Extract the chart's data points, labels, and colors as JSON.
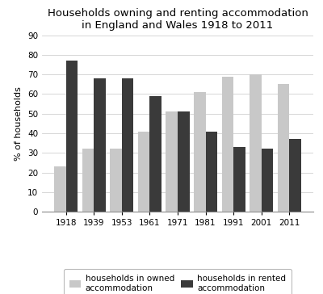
{
  "title": "Households owning and renting accommodation\nin England and Wales 1918 to 2011",
  "years": [
    "1918",
    "1939",
    "1953",
    "1961",
    "1971",
    "1981",
    "1991",
    "2001",
    "2011"
  ],
  "owned": [
    23,
    32,
    32,
    41,
    51,
    61,
    69,
    70,
    65
  ],
  "rented": [
    77,
    68,
    68,
    59,
    51,
    41,
    33,
    32,
    37
  ],
  "owned_color": "#c8c8c8",
  "rented_color": "#3a3a3a",
  "ylabel": "% of households",
  "ylim": [
    0,
    90
  ],
  "yticks": [
    0,
    10,
    20,
    30,
    40,
    50,
    60,
    70,
    80,
    90
  ],
  "legend_owned": "households in owned\naccommodation",
  "legend_rented": "households in rented\naccommodation",
  "bar_width": 0.42,
  "title_fontsize": 9.5,
  "axis_fontsize": 8,
  "tick_fontsize": 7.5,
  "legend_fontsize": 7.5
}
